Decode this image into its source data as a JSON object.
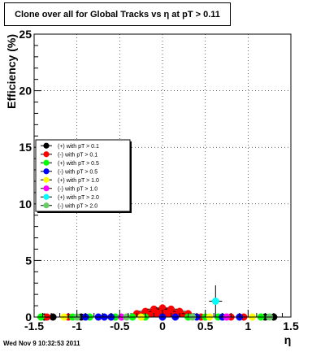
{
  "chart_data": {
    "type": "scatter",
    "title": "Clone  over all for Global Tracks vs η at pT > 0.11",
    "xlabel": "η",
    "ylabel": "Efficiency (%)",
    "xlim": [
      -1.5,
      1.5
    ],
    "ylim": [
      0,
      25
    ],
    "xticks": [
      -1.5,
      -1,
      -0.5,
      0,
      0.5,
      1,
      1.5
    ],
    "xtick_labels": [
      "-1.5",
      "-1",
      "-0.5",
      "0",
      "0.5",
      "1",
      "1.5"
    ],
    "yticks": [
      0,
      5,
      10,
      15,
      20,
      25
    ],
    "ytick_labels": [
      "0",
      "5",
      "10",
      "15",
      "20",
      "25"
    ],
    "grid": true,
    "legend_position": "left-middle",
    "series": [
      {
        "name": "(+) with pT > 0.1",
        "color": "#000000",
        "x": [
          -1.38,
          -1.28,
          -0.95,
          1.2,
          1.3
        ],
        "y": [
          0,
          0,
          0,
          0,
          0
        ]
      },
      {
        "name": "(-) with pT > 0.1",
        "color": "#ff0000",
        "x": [
          -1.35,
          -1.1,
          -0.6,
          -0.3,
          -0.2,
          -0.1,
          0.0,
          0.1,
          0.2,
          0.3,
          0.45,
          0.8,
          0.95
        ],
        "y": [
          0,
          0,
          0,
          0.3,
          0.5,
          0.7,
          0.8,
          0.7,
          0.5,
          0.3,
          0,
          0,
          0
        ]
      },
      {
        "name": "(+) with pT > 0.5",
        "color": "#00ff00",
        "x": [
          -1.42,
          -1.05,
          -0.85,
          -0.55,
          -0.35,
          -0.2,
          0.3,
          0.5,
          0.65,
          1.15
        ],
        "y": [
          0,
          0,
          0,
          0,
          0,
          0,
          0,
          0,
          0,
          0
        ]
      },
      {
        "name": "(-) with pT > 0.5",
        "color": "#0000ff",
        "x": [
          -0.9,
          -0.75,
          -0.68,
          -0.6,
          0.0,
          0.15,
          0.4,
          0.7,
          0.9
        ],
        "y": [
          0,
          0,
          0,
          0,
          0,
          0,
          0,
          0,
          0
        ]
      },
      {
        "name": "(+) with pT > 1.0",
        "color": "#ffff00",
        "x": [
          -1.15,
          -0.25,
          0.55,
          1.05
        ],
        "y": [
          0,
          0,
          0,
          0
        ]
      },
      {
        "name": "(-) with pT > 1.0",
        "color": "#ff00ff",
        "x": [
          -0.48,
          0.75
        ],
        "y": [
          0,
          0
        ]
      },
      {
        "name": "(+) with pT > 2.0",
        "color": "#00ffff",
        "x": [
          0.62
        ],
        "y": [
          1.4
        ],
        "yerr": [
          1.4
        ]
      },
      {
        "name": "(-) with pT > 2.0",
        "color": "#66cc66",
        "x": [
          -1.0,
          -0.42,
          0.35,
          1.25
        ],
        "y": [
          0,
          0,
          0,
          0
        ]
      }
    ]
  },
  "footer": {
    "timestamp": "Wed Nov  9 10:32:53 2011"
  }
}
